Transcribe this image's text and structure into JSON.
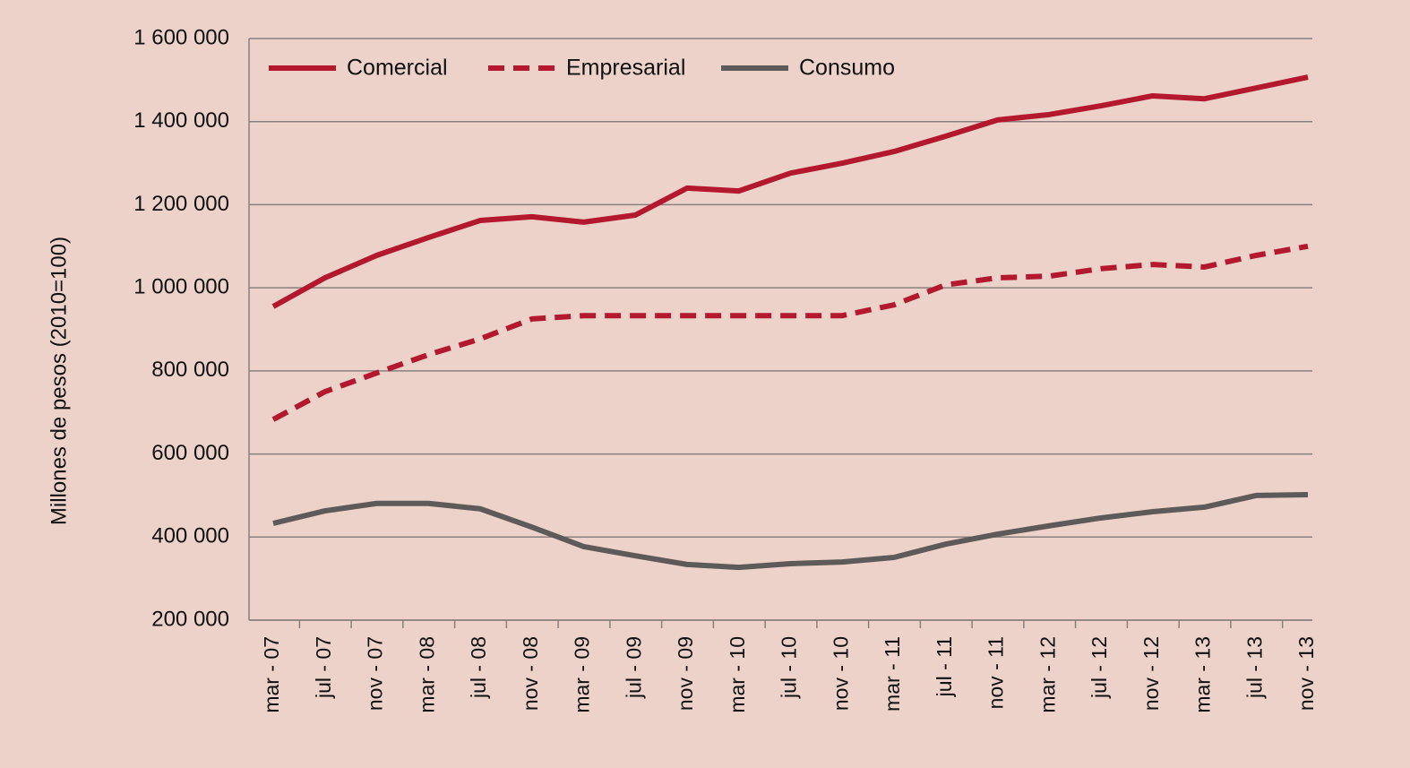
{
  "chart_data": {
    "type": "line",
    "y_label": "Millones de pesos (2010=100)",
    "categories": [
      "mar - 07",
      "jul - 07",
      "nov - 07",
      "mar - 08",
      "jul - 08",
      "nov - 08",
      "mar - 09",
      "jul - 09",
      "nov - 09",
      "mar - 10",
      "jul - 10",
      "nov - 10",
      "mar - 11",
      "jul - 11",
      "nov - 11",
      "mar - 12",
      "jul - 12",
      "nov - 12",
      "mar - 13",
      "jul - 13",
      "nov - 13"
    ],
    "series": [
      {
        "name": "Comercial",
        "color": "#b3182f",
        "dashed": false,
        "values": [
          955000,
          1024000,
          1078000,
          1121000,
          1162000,
          1171000,
          1158000,
          1175000,
          1240000,
          1233000,
          1276000,
          1300000,
          1328000,
          1365000,
          1404000,
          1417000,
          1438000,
          1462000,
          1455000,
          1481000,
          1507000
        ]
      },
      {
        "name": "Empresarial",
        "color": "#b3182f",
        "dashed": true,
        "values": [
          683000,
          750000,
          795000,
          839000,
          877000,
          925000,
          933000,
          933000,
          933000,
          933000,
          933000,
          933000,
          959000,
          1007000,
          1024000,
          1028000,
          1046000,
          1056000,
          1050000,
          1078000,
          1100000
        ]
      },
      {
        "name": "Consumo",
        "color": "#5e5a5a",
        "dashed": false,
        "values": [
          433000,
          463000,
          481000,
          481000,
          468000,
          424000,
          377000,
          355000,
          334000,
          327000,
          336000,
          340000,
          351000,
          383000,
          407000,
          427000,
          446000,
          461000,
          472000,
          500000,
          502000
        ]
      }
    ],
    "ylim": [
      200000,
      1600000
    ],
    "yticks": [
      {
        "value": 200000,
        "label": "200 000"
      },
      {
        "value": 400000,
        "label": "400 000"
      },
      {
        "value": 600000,
        "label": "600 000"
      },
      {
        "value": 800000,
        "label": "800 000"
      },
      {
        "value": 1000000,
        "label": "1 000 000"
      },
      {
        "value": 1200000,
        "label": "1 200 000"
      },
      {
        "value": 1400000,
        "label": "1 400 000"
      },
      {
        "value": 1600000,
        "label": "1 600 000"
      }
    ],
    "grid": true,
    "legend": "top-left"
  }
}
